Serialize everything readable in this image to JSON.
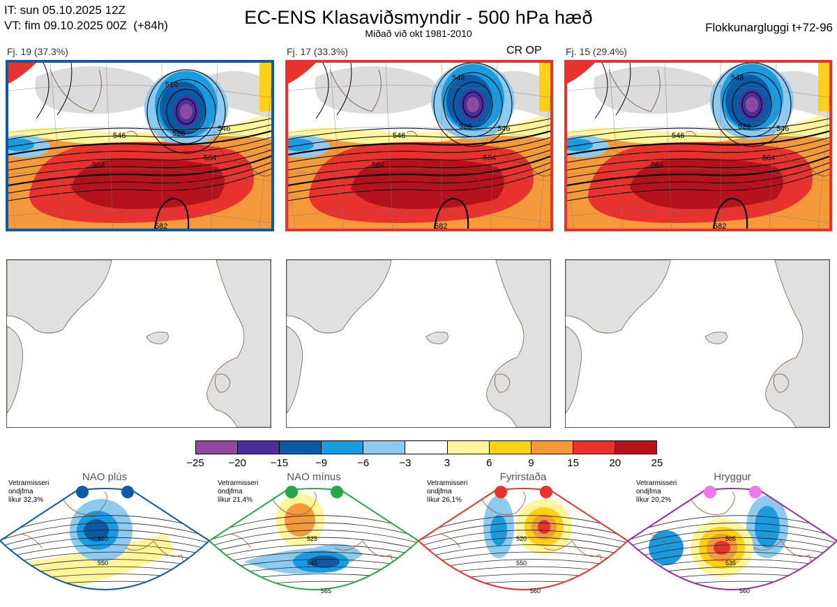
{
  "header": {
    "initial_time": "IT: sun 05.10.2025 12Z",
    "valid_time": "VT: fim 09.10.2025 00Z  (+84h)",
    "title": "EC-ENS Klasaviðsmyndir - 500 hPa hæð",
    "subtitle": "Miðað við okt 1981-2010",
    "window": "Flokkunargluggi t+72-96"
  },
  "clusters": [
    {
      "label": "Fj. 19 (37.3%)",
      "tag": "",
      "border_color": "#0b5aa6",
      "contours": [
        "510",
        "528",
        "546",
        "546",
        "564",
        "564",
        "582"
      ]
    },
    {
      "label": "Fj. 17 (33.3%)",
      "tag": "CR OP",
      "border_color": "#e8322e",
      "contours": [
        "546",
        "528",
        "546",
        "546",
        "564",
        "564",
        "582"
      ]
    },
    {
      "label": "Fj. 15 (29.4%)",
      "tag": "",
      "border_color": "#e8322e",
      "contours": [
        "546",
        "528",
        "546",
        "546",
        "564",
        "564",
        "582"
      ]
    }
  ],
  "legend": {
    "colors": [
      "#8e4a9e",
      "#4a2f9a",
      "#0b5aa6",
      "#1a9be0",
      "#8ccaef",
      "#ffffff",
      "#fff59a",
      "#fdd11a",
      "#f59a3a",
      "#e8322e",
      "#b5121b"
    ],
    "ticks": [
      "−25",
      "−20",
      "−15",
      "−9",
      "−6",
      "−3",
      "3",
      "6",
      "9",
      "15",
      "20",
      "25"
    ]
  },
  "regimes": [
    {
      "name": "NAO plús",
      "season": "Vetrarmisseri",
      "type": "ondjfma",
      "likelihood": "líkur 32,3%",
      "color": "#0b5aa6",
      "contour_labels": [
        "510",
        "550"
      ]
    },
    {
      "name": "NAO mínus",
      "season": "Vetrarmisseri",
      "type": "ondjfma",
      "likelihood": "líkur 21,4%",
      "color": "#22a84a",
      "contour_labels": [
        "525",
        "545",
        "565"
      ]
    },
    {
      "name": "Fyrirstaða",
      "season": "Vetrarmisseri",
      "type": "ondjfma",
      "likelihood": "líkur 26,1%",
      "color": "#e8322e",
      "contour_labels": [
        "520",
        "550",
        "560"
      ]
    },
    {
      "name": "Hryggur",
      "season": "Vetrarmisseri",
      "type": "ondjfma",
      "likelihood": "líkur 20,2%",
      "color": "#9b2f9e",
      "contour_labels": [
        "505",
        "535",
        "560"
      ]
    }
  ]
}
